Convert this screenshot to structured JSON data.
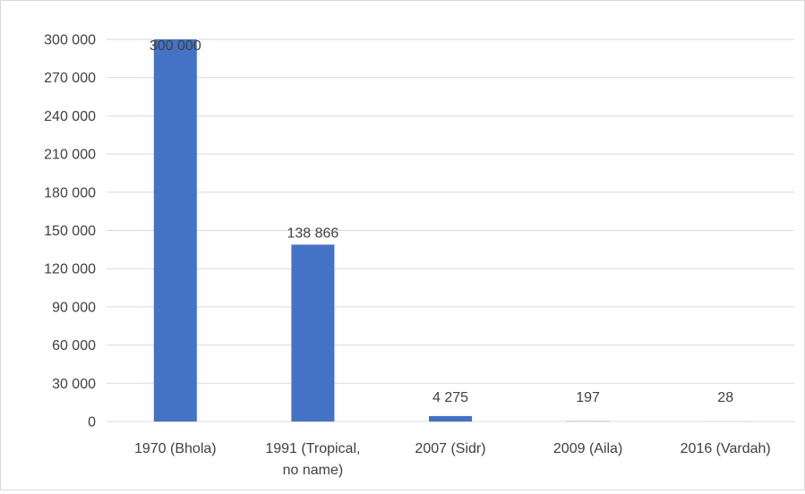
{
  "chart_data": {
    "type": "bar",
    "title": "",
    "xlabel": "",
    "ylabel": "",
    "categories": [
      [
        "1970 (Bhola)"
      ],
      [
        "1991 (Tropical,",
        "no name)"
      ],
      [
        "2007 (Sidr)"
      ],
      [
        "2009 (Aila)"
      ],
      [
        "2016 (Vardah)"
      ]
    ],
    "values": [
      300000,
      138866,
      4275,
      197,
      28
    ],
    "data_labels": [
      "300 000",
      "138 866",
      "4 275",
      "197",
      "28"
    ],
    "y_ticks": [
      0,
      30000,
      60000,
      90000,
      120000,
      150000,
      180000,
      210000,
      240000,
      270000,
      300000
    ],
    "y_tick_labels": [
      "0",
      "30 000",
      "60 000",
      "90 000",
      "120 000",
      "150 000",
      "180 000",
      "210 000",
      "240 000",
      "270 000",
      "300 000"
    ],
    "ylim": [
      0,
      300000
    ],
    "grid": true,
    "legend": "none",
    "colors": {
      "bar": "#4472c4",
      "grid": "#d9d9d9",
      "text": "#404040"
    }
  }
}
